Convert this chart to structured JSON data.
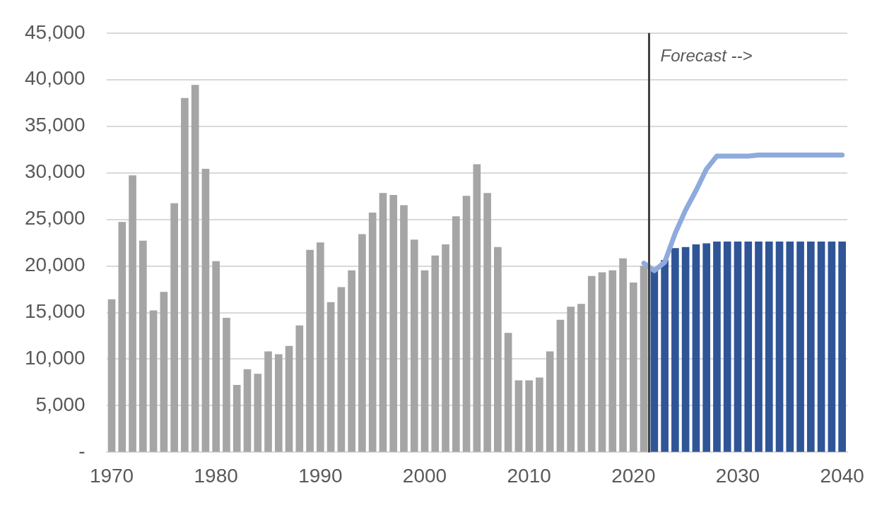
{
  "chart_data": {
    "type": "bar",
    "xlim": [
      1969.5,
      2040.5
    ],
    "xticks": [
      1970,
      1980,
      1990,
      2000,
      2010,
      2020,
      2030,
      2040
    ],
    "ylim": [
      0,
      45000
    ],
    "yticks": [
      {
        "value": 0,
        "label": "-"
      },
      {
        "value": 5000,
        "label": "5,000"
      },
      {
        "value": 10000,
        "label": "10,000"
      },
      {
        "value": 15000,
        "label": "15,000"
      },
      {
        "value": 20000,
        "label": "20,000"
      },
      {
        "value": 25000,
        "label": "25,000"
      },
      {
        "value": 30000,
        "label": "30,000"
      },
      {
        "value": 35000,
        "label": "35,000"
      },
      {
        "value": 40000,
        "label": "40,000"
      },
      {
        "value": 45000,
        "label": "45,000"
      }
    ],
    "grid": "y",
    "series": [
      {
        "color": "#a5a5a5",
        "x": [
          1970,
          1971,
          1972,
          1973,
          1974,
          1975,
          1976,
          1977,
          1978,
          1979,
          1980,
          1981,
          1982,
          1983,
          1984,
          1985,
          1986,
          1987,
          1988,
          1989,
          1990,
          1991,
          1992,
          1993,
          1994,
          1995,
          1996,
          1997,
          1998,
          1999,
          2000,
          2001,
          2002,
          2003,
          2004,
          2005,
          2006,
          2007,
          2008,
          2009,
          2010,
          2011,
          2012,
          2013,
          2014,
          2015,
          2016,
          2017,
          2018,
          2019,
          2020,
          2021
        ],
        "values": [
          16400,
          24700,
          29700,
          22700,
          15200,
          17200,
          26700,
          38000,
          39400,
          30400,
          20500,
          14400,
          7200,
          8900,
          8400,
          10800,
          10500,
          11400,
          13600,
          21700,
          22500,
          16100,
          17700,
          19500,
          23400,
          25700,
          27800,
          27600,
          26500,
          22800,
          19500,
          21100,
          22300,
          25300,
          27500,
          30900,
          27800,
          22000,
          12800,
          7700,
          7700,
          8000,
          10800,
          14200,
          15600,
          15900,
          18900,
          19300,
          19500,
          20800,
          18200,
          20000
        ]
      },
      {
        "color": "#2f5597",
        "x": [
          2022,
          2023,
          2024,
          2025,
          2026,
          2027,
          2028,
          2029,
          2030,
          2031,
          2032,
          2033,
          2034,
          2035,
          2036,
          2037,
          2038,
          2039,
          2040
        ],
        "values": [
          19800,
          20600,
          21900,
          22000,
          22300,
          22400,
          22600,
          22600,
          22600,
          22600,
          22600,
          22600,
          22600,
          22600,
          22600,
          22600,
          22600,
          22600,
          22600
        ]
      },
      {
        "type": "line",
        "color": "#8faadc",
        "x": [
          2021,
          2022,
          2023,
          2024,
          2025,
          2026,
          2027,
          2028,
          2029,
          2030,
          2031,
          2032,
          2033,
          2034,
          2035,
          2036,
          2037,
          2038,
          2039,
          2040
        ],
        "values": [
          20300,
          19500,
          20400,
          23500,
          26000,
          28100,
          30400,
          31800,
          31800,
          31800,
          31800,
          31900,
          31900,
          31900,
          31900,
          31900,
          31900,
          31900,
          31900,
          31900
        ]
      }
    ],
    "ref_lines": [
      {
        "axis": "x",
        "value": 2021.5,
        "label": "Forecast -->",
        "color": "#404040"
      }
    ]
  }
}
